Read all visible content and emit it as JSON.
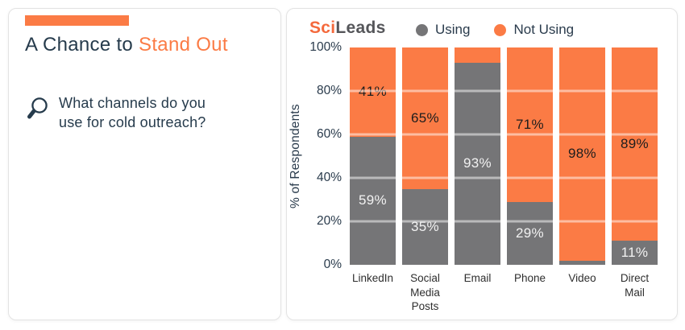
{
  "left_panel": {
    "title_prefix": "A Chance to ",
    "title_highlight": "Stand Out",
    "question_line1": "What channels do you",
    "question_line2": "use for cold outreach?"
  },
  "header": {
    "logo_part1": "Sci",
    "logo_part2": "Leads",
    "logo_color1": "#f4693c",
    "logo_color2": "#55565a"
  },
  "legend": {
    "items": [
      {
        "label": "Using",
        "color": "#757577"
      },
      {
        "label": "Not Using",
        "color": "#fb7b45"
      }
    ]
  },
  "colors": {
    "accent_orange": "#fb7b45",
    "bar_gray": "#757577",
    "navy_text": "#263b4c",
    "label_on_orange": "#1d1d1d",
    "label_on_gray": "#f2f2f2"
  },
  "chart_data": {
    "type": "bar",
    "stacked": true,
    "title": "",
    "xlabel": "",
    "ylabel": "% of Respondents",
    "ylim": [
      0,
      100
    ],
    "grid": true,
    "legend_position": "top",
    "yticks": [
      {
        "value": 0,
        "label": "0%"
      },
      {
        "value": 20,
        "label": "20%"
      },
      {
        "value": 40,
        "label": "40%"
      },
      {
        "value": 60,
        "label": "60%"
      },
      {
        "value": 80,
        "label": "80%"
      },
      {
        "value": 100,
        "label": "100%"
      }
    ],
    "gridlines": [
      20,
      40,
      60,
      80
    ],
    "categories": [
      "LinkedIn",
      "Social Media Posts",
      "Email",
      "Phone",
      "Video",
      "Direct Mail"
    ],
    "series": [
      {
        "name": "Using",
        "color": "#757577",
        "values": [
          59,
          35,
          93,
          29,
          2,
          11
        ],
        "labels": [
          "59%",
          "35%",
          "93%",
          "29%",
          "",
          "11%"
        ]
      },
      {
        "name": "Not Using",
        "color": "#fb7b45",
        "values": [
          41,
          65,
          7,
          71,
          98,
          89
        ],
        "labels": [
          "41%",
          "65%",
          "",
          "71%",
          "98%",
          "89%"
        ]
      }
    ]
  }
}
